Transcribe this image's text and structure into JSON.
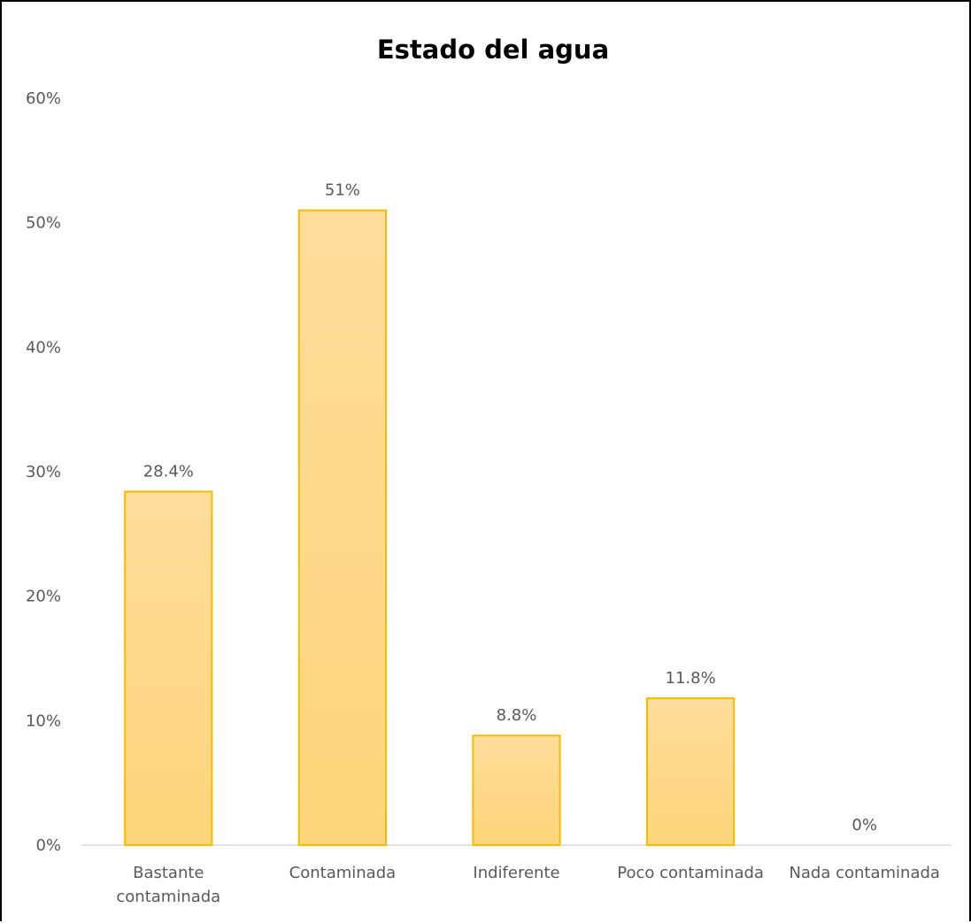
{
  "chart_data": {
    "type": "bar",
    "title": "Estado del agua",
    "xlabel": "",
    "ylabel": "",
    "categories": [
      [
        "Bastante",
        "contaminada"
      ],
      [
        "Contaminada"
      ],
      [
        "Indiferente"
      ],
      [
        "Poco contaminada"
      ],
      [
        "Nada contaminada"
      ]
    ],
    "values": [
      28.4,
      51,
      8.8,
      11.8,
      0
    ],
    "data_labels": [
      "28.4%",
      "51%",
      "8.8%",
      "11.8%",
      "0%"
    ],
    "ylim": [
      0,
      60
    ],
    "yticks": [
      0,
      10,
      20,
      30,
      40,
      50,
      60
    ],
    "ytick_labels": [
      "0%",
      "10%",
      "20%",
      "30%",
      "40%",
      "50%",
      "60%"
    ],
    "grid": false,
    "legend": "none",
    "colors": {
      "bar_fill_top": "#fedd9b",
      "bar_fill_bottom": "#fed57a",
      "bar_stroke": "#f4bd00",
      "axis": "#d9d9d9",
      "text": "#595959"
    }
  }
}
